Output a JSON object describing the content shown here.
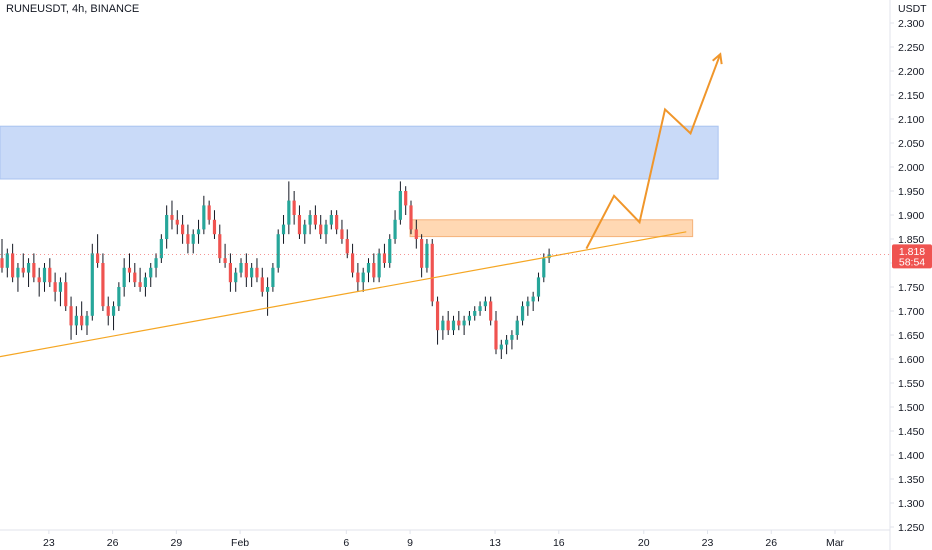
{
  "header": {
    "symbol": "RUNEUSDT, 4h, BINANCE"
  },
  "colors": {
    "up": "#26a69a",
    "down": "#ef5350",
    "wick": "#131722",
    "resistance_zone": "#c9daf8",
    "supply_zone": "#ffd8b3",
    "trendline": "#f5a623",
    "projection": "#f0962b",
    "price_tag": "#ef5350",
    "grid": "#f0f3fa",
    "axis_border": "#e0e3eb"
  },
  "chart_data": {
    "type": "candlestick",
    "y_axis": {
      "unit": "USDT",
      "range": [
        1.232,
        2.332
      ],
      "ticks": [
        "2.300",
        "2.250",
        "2.200",
        "2.150",
        "2.100",
        "2.050",
        "2.000",
        "1.950",
        "1.900",
        "1.850",
        "1.800",
        "1.750",
        "1.700",
        "1.650",
        "1.600",
        "1.550",
        "1.500",
        "1.450",
        "1.400",
        "1.350",
        "1.300",
        "1.250"
      ]
    },
    "x_axis": {
      "range": [
        20.7,
        33.6
      ],
      "ticks": [
        {
          "label": "23",
          "x": 23
        },
        {
          "label": "26",
          "x": 26
        },
        {
          "label": "29",
          "x": 29
        },
        {
          "label": "Feb",
          "x": 32
        },
        {
          "label": "6",
          "x": 37
        },
        {
          "label": "9",
          "x": 40
        },
        {
          "label": "13",
          "x": 44
        },
        {
          "label": "16",
          "x": 47
        },
        {
          "label": "20",
          "x": 51
        },
        {
          "label": "23",
          "x": 54
        },
        {
          "label": "26",
          "x": 57
        },
        {
          "label": "Mar",
          "x": 60
        }
      ]
    },
    "current_price": "1.818",
    "countdown": "58:54",
    "candles": [
      {
        "o": 1.81,
        "h": 1.85,
        "l": 1.78,
        "c": 1.79
      },
      {
        "o": 1.79,
        "h": 1.83,
        "l": 1.77,
        "c": 1.82
      },
      {
        "o": 1.82,
        "h": 1.84,
        "l": 1.76,
        "c": 1.77
      },
      {
        "o": 1.77,
        "h": 1.8,
        "l": 1.74,
        "c": 1.79
      },
      {
        "o": 1.79,
        "h": 1.82,
        "l": 1.77,
        "c": 1.78
      },
      {
        "o": 1.78,
        "h": 1.81,
        "l": 1.75,
        "c": 1.8
      },
      {
        "o": 1.8,
        "h": 1.82,
        "l": 1.76,
        "c": 1.77
      },
      {
        "o": 1.77,
        "h": 1.79,
        "l": 1.73,
        "c": 1.76
      },
      {
        "o": 1.76,
        "h": 1.8,
        "l": 1.74,
        "c": 1.79
      },
      {
        "o": 1.79,
        "h": 1.81,
        "l": 1.75,
        "c": 1.76
      },
      {
        "o": 1.76,
        "h": 1.78,
        "l": 1.72,
        "c": 1.74
      },
      {
        "o": 1.74,
        "h": 1.77,
        "l": 1.71,
        "c": 1.76
      },
      {
        "o": 1.76,
        "h": 1.78,
        "l": 1.7,
        "c": 1.71
      },
      {
        "o": 1.71,
        "h": 1.73,
        "l": 1.64,
        "c": 1.67
      },
      {
        "o": 1.67,
        "h": 1.71,
        "l": 1.65,
        "c": 1.69
      },
      {
        "o": 1.69,
        "h": 1.72,
        "l": 1.66,
        "c": 1.67
      },
      {
        "o": 1.67,
        "h": 1.7,
        "l": 1.65,
        "c": 1.69
      },
      {
        "o": 1.69,
        "h": 1.84,
        "l": 1.68,
        "c": 1.82
      },
      {
        "o": 1.82,
        "h": 1.86,
        "l": 1.79,
        "c": 1.8
      },
      {
        "o": 1.8,
        "h": 1.82,
        "l": 1.7,
        "c": 1.71
      },
      {
        "o": 1.71,
        "h": 1.73,
        "l": 1.67,
        "c": 1.69
      },
      {
        "o": 1.69,
        "h": 1.72,
        "l": 1.66,
        "c": 1.71
      },
      {
        "o": 1.71,
        "h": 1.76,
        "l": 1.7,
        "c": 1.75
      },
      {
        "o": 1.75,
        "h": 1.81,
        "l": 1.73,
        "c": 1.79
      },
      {
        "o": 1.79,
        "h": 1.82,
        "l": 1.76,
        "c": 1.78
      },
      {
        "o": 1.78,
        "h": 1.8,
        "l": 1.75,
        "c": 1.76
      },
      {
        "o": 1.76,
        "h": 1.79,
        "l": 1.74,
        "c": 1.75
      },
      {
        "o": 1.75,
        "h": 1.78,
        "l": 1.73,
        "c": 1.77
      },
      {
        "o": 1.77,
        "h": 1.8,
        "l": 1.75,
        "c": 1.79
      },
      {
        "o": 1.79,
        "h": 1.82,
        "l": 1.77,
        "c": 1.81
      },
      {
        "o": 1.81,
        "h": 1.86,
        "l": 1.8,
        "c": 1.85
      },
      {
        "o": 1.85,
        "h": 1.92,
        "l": 1.83,
        "c": 1.9
      },
      {
        "o": 1.9,
        "h": 1.93,
        "l": 1.87,
        "c": 1.89
      },
      {
        "o": 1.89,
        "h": 1.91,
        "l": 1.86,
        "c": 1.88
      },
      {
        "o": 1.88,
        "h": 1.9,
        "l": 1.84,
        "c": 1.86
      },
      {
        "o": 1.86,
        "h": 1.88,
        "l": 1.82,
        "c": 1.84
      },
      {
        "o": 1.84,
        "h": 1.87,
        "l": 1.82,
        "c": 1.86
      },
      {
        "o": 1.86,
        "h": 1.89,
        "l": 1.84,
        "c": 1.87
      },
      {
        "o": 1.87,
        "h": 1.94,
        "l": 1.86,
        "c": 1.92
      },
      {
        "o": 1.92,
        "h": 1.93,
        "l": 1.88,
        "c": 1.89
      },
      {
        "o": 1.89,
        "h": 1.91,
        "l": 1.85,
        "c": 1.86
      },
      {
        "o": 1.86,
        "h": 1.88,
        "l": 1.8,
        "c": 1.81
      },
      {
        "o": 1.81,
        "h": 1.84,
        "l": 1.79,
        "c": 1.8
      },
      {
        "o": 1.8,
        "h": 1.82,
        "l": 1.74,
        "c": 1.76
      },
      {
        "o": 1.76,
        "h": 1.79,
        "l": 1.74,
        "c": 1.78
      },
      {
        "o": 1.78,
        "h": 1.81,
        "l": 1.77,
        "c": 1.8
      },
      {
        "o": 1.8,
        "h": 1.82,
        "l": 1.75,
        "c": 1.77
      },
      {
        "o": 1.77,
        "h": 1.8,
        "l": 1.75,
        "c": 1.79
      },
      {
        "o": 1.79,
        "h": 1.81,
        "l": 1.76,
        "c": 1.77
      },
      {
        "o": 1.77,
        "h": 1.79,
        "l": 1.73,
        "c": 1.74
      },
      {
        "o": 1.74,
        "h": 1.77,
        "l": 1.69,
        "c": 1.75
      },
      {
        "o": 1.75,
        "h": 1.8,
        "l": 1.74,
        "c": 1.79
      },
      {
        "o": 1.79,
        "h": 1.87,
        "l": 1.78,
        "c": 1.86
      },
      {
        "o": 1.86,
        "h": 1.9,
        "l": 1.84,
        "c": 1.88
      },
      {
        "o": 1.88,
        "h": 1.97,
        "l": 1.86,
        "c": 1.93
      },
      {
        "o": 1.93,
        "h": 1.95,
        "l": 1.88,
        "c": 1.9
      },
      {
        "o": 1.9,
        "h": 1.92,
        "l": 1.85,
        "c": 1.86
      },
      {
        "o": 1.86,
        "h": 1.89,
        "l": 1.84,
        "c": 1.88
      },
      {
        "o": 1.88,
        "h": 1.91,
        "l": 1.86,
        "c": 1.9
      },
      {
        "o": 1.9,
        "h": 1.92,
        "l": 1.87,
        "c": 1.88
      },
      {
        "o": 1.88,
        "h": 1.9,
        "l": 1.85,
        "c": 1.86
      },
      {
        "o": 1.86,
        "h": 1.89,
        "l": 1.84,
        "c": 1.88
      },
      {
        "o": 1.88,
        "h": 1.91,
        "l": 1.87,
        "c": 1.9
      },
      {
        "o": 1.9,
        "h": 1.91,
        "l": 1.86,
        "c": 1.87
      },
      {
        "o": 1.87,
        "h": 1.89,
        "l": 1.84,
        "c": 1.85
      },
      {
        "o": 1.85,
        "h": 1.87,
        "l": 1.81,
        "c": 1.82
      },
      {
        "o": 1.82,
        "h": 1.84,
        "l": 1.77,
        "c": 1.78
      },
      {
        "o": 1.78,
        "h": 1.8,
        "l": 1.74,
        "c": 1.76
      },
      {
        "o": 1.76,
        "h": 1.79,
        "l": 1.74,
        "c": 1.78
      },
      {
        "o": 1.78,
        "h": 1.81,
        "l": 1.76,
        "c": 1.8
      },
      {
        "o": 1.8,
        "h": 1.82,
        "l": 1.76,
        "c": 1.77
      },
      {
        "o": 1.77,
        "h": 1.83,
        "l": 1.76,
        "c": 1.82
      },
      {
        "o": 1.82,
        "h": 1.84,
        "l": 1.79,
        "c": 1.8
      },
      {
        "o": 1.8,
        "h": 1.86,
        "l": 1.79,
        "c": 1.85
      },
      {
        "o": 1.85,
        "h": 1.91,
        "l": 1.84,
        "c": 1.89
      },
      {
        "o": 1.89,
        "h": 1.97,
        "l": 1.88,
        "c": 1.95
      },
      {
        "o": 1.95,
        "h": 1.96,
        "l": 1.9,
        "c": 1.92
      },
      {
        "o": 1.92,
        "h": 1.93,
        "l": 1.86,
        "c": 1.87
      },
      {
        "o": 1.87,
        "h": 1.89,
        "l": 1.83,
        "c": 1.85
      },
      {
        "o": 1.85,
        "h": 1.86,
        "l": 1.77,
        "c": 1.79
      },
      {
        "o": 1.79,
        "h": 1.85,
        "l": 1.78,
        "c": 1.84
      },
      {
        "o": 1.84,
        "h": 1.85,
        "l": 1.71,
        "c": 1.72
      },
      {
        "o": 1.72,
        "h": 1.73,
        "l": 1.63,
        "c": 1.66
      },
      {
        "o": 1.66,
        "h": 1.69,
        "l": 1.64,
        "c": 1.68
      },
      {
        "o": 1.68,
        "h": 1.7,
        "l": 1.65,
        "c": 1.66
      },
      {
        "o": 1.66,
        "h": 1.69,
        "l": 1.65,
        "c": 1.68
      },
      {
        "o": 1.68,
        "h": 1.7,
        "l": 1.66,
        "c": 1.67
      },
      {
        "o": 1.67,
        "h": 1.69,
        "l": 1.65,
        "c": 1.68
      },
      {
        "o": 1.68,
        "h": 1.7,
        "l": 1.67,
        "c": 1.69
      },
      {
        "o": 1.69,
        "h": 1.71,
        "l": 1.68,
        "c": 1.7
      },
      {
        "o": 1.7,
        "h": 1.72,
        "l": 1.69,
        "c": 1.71
      },
      {
        "o": 1.71,
        "h": 1.73,
        "l": 1.7,
        "c": 1.72
      },
      {
        "o": 1.72,
        "h": 1.73,
        "l": 1.67,
        "c": 1.68
      },
      {
        "o": 1.68,
        "h": 1.7,
        "l": 1.61,
        "c": 1.62
      },
      {
        "o": 1.62,
        "h": 1.64,
        "l": 1.6,
        "c": 1.63
      },
      {
        "o": 1.63,
        "h": 1.65,
        "l": 1.61,
        "c": 1.64
      },
      {
        "o": 1.64,
        "h": 1.66,
        "l": 1.62,
        "c": 1.65
      },
      {
        "o": 1.65,
        "h": 1.69,
        "l": 1.64,
        "c": 1.68
      },
      {
        "o": 1.68,
        "h": 1.72,
        "l": 1.67,
        "c": 1.71
      },
      {
        "o": 1.71,
        "h": 1.73,
        "l": 1.69,
        "c": 1.72
      },
      {
        "o": 1.72,
        "h": 1.74,
        "l": 1.7,
        "c": 1.73
      },
      {
        "o": 1.73,
        "h": 1.78,
        "l": 1.72,
        "c": 1.77
      },
      {
        "o": 1.77,
        "h": 1.82,
        "l": 1.76,
        "c": 1.81
      },
      {
        "o": 1.81,
        "h": 1.83,
        "l": 1.8,
        "c": 1.818
      }
    ],
    "candle_x": {
      "start": 20.7,
      "step": 0.25
    },
    "resistance_zone": {
      "x_from": 20.7,
      "x_to": 54.5,
      "y_from": 1.975,
      "y_to": 2.085
    },
    "supply_zone": {
      "x_from": 40.0,
      "x_to": 53.3,
      "y_from": 1.855,
      "y_to": 1.89
    },
    "trendline": {
      "from": [
        20.7,
        1.605
      ],
      "to": [
        53.0,
        1.865
      ]
    },
    "projection": [
      [
        48.3,
        1.83
      ],
      [
        49.6,
        1.94
      ],
      [
        50.8,
        1.885
      ],
      [
        52.0,
        2.12
      ],
      [
        53.2,
        2.07
      ],
      [
        54.6,
        2.235
      ]
    ]
  }
}
